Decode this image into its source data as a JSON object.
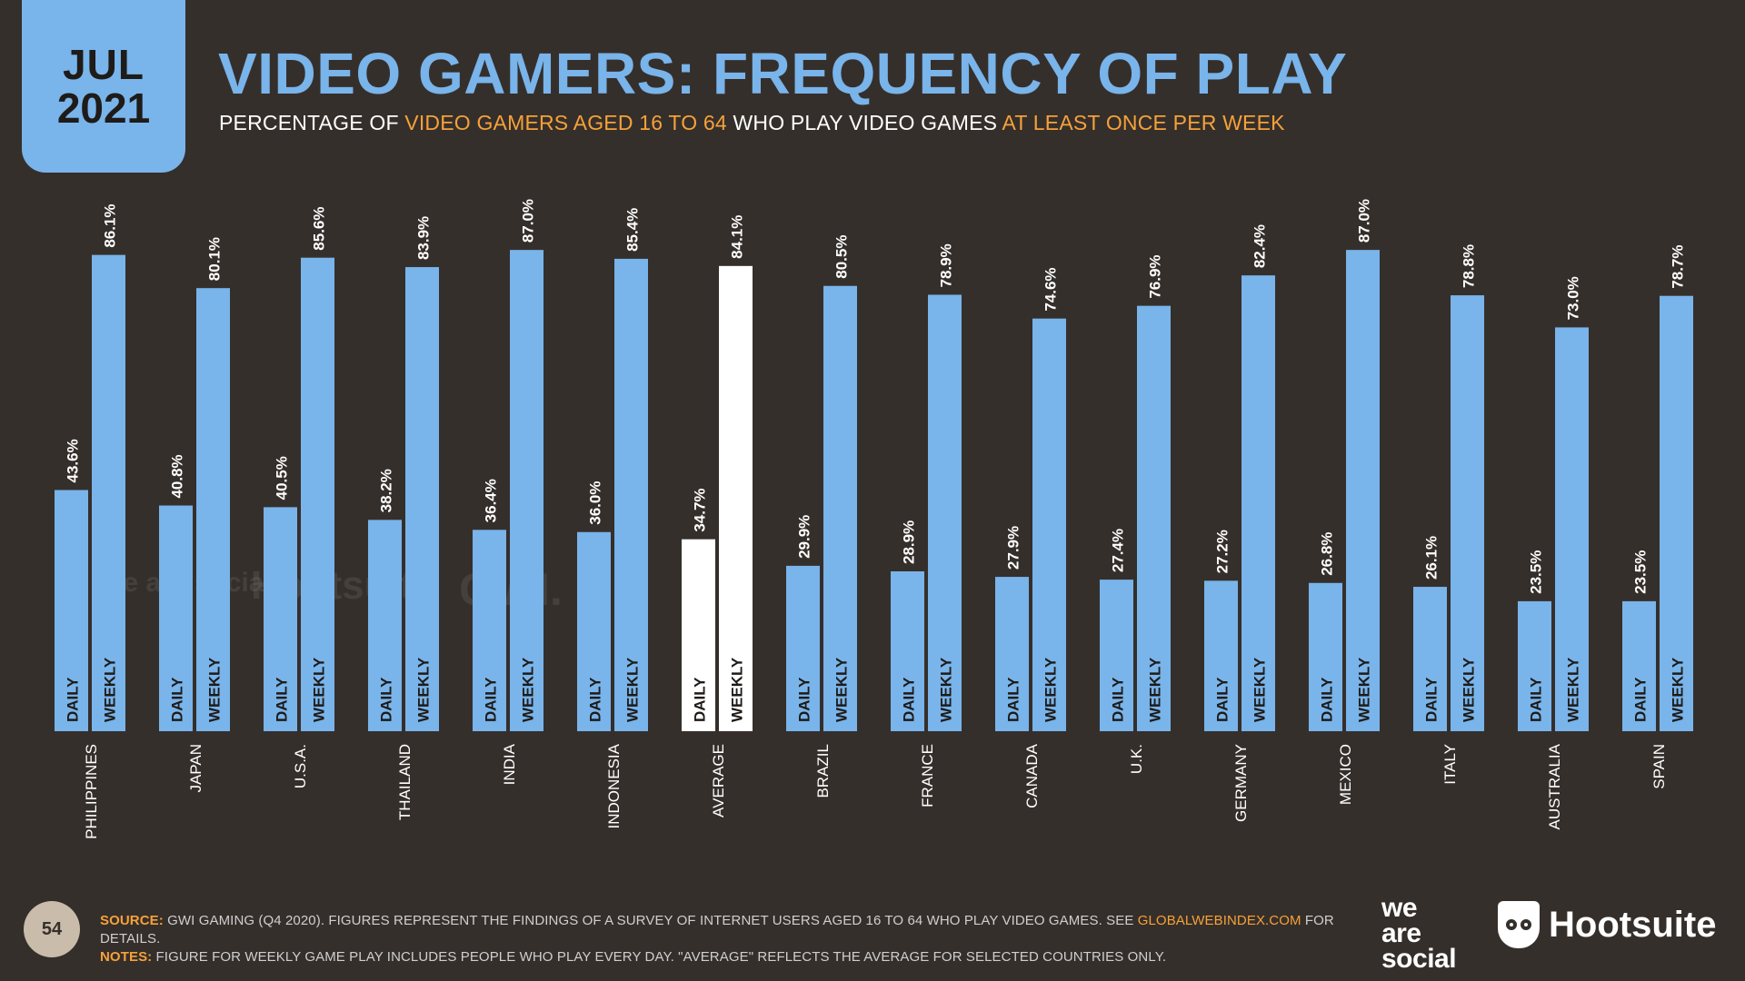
{
  "badge": {
    "month": "JUL",
    "year": "2021"
  },
  "header": {
    "title": "VIDEO GAMERS: FREQUENCY OF PLAY",
    "subtitle_parts": [
      "PERCENTAGE OF ",
      "VIDEO GAMERS AGED 16 TO 64",
      " WHO PLAY VIDEO GAMES ",
      "AT LEAST ONCE PER WEEK"
    ]
  },
  "chart_data": {
    "type": "bar",
    "categories": [
      "PHILIPPINES",
      "JAPAN",
      "U.S.A.",
      "THAILAND",
      "INDIA",
      "INDONESIA",
      "AVERAGE",
      "BRAZIL",
      "FRANCE",
      "CANADA",
      "U.K.",
      "GERMANY",
      "MEXICO",
      "ITALY",
      "AUSTRALIA",
      "SPAIN"
    ],
    "series": [
      {
        "name": "DAILY",
        "values": [
          43.6,
          40.8,
          40.5,
          38.2,
          36.4,
          36.0,
          34.7,
          29.9,
          28.9,
          27.9,
          27.4,
          27.2,
          26.8,
          26.1,
          23.5,
          23.5
        ]
      },
      {
        "name": "WEEKLY",
        "values": [
          86.1,
          80.1,
          85.6,
          83.9,
          87.0,
          85.4,
          84.1,
          80.5,
          78.9,
          74.6,
          76.9,
          82.4,
          87.0,
          78.8,
          73.0,
          78.7
        ]
      }
    ],
    "value_suffix": "%",
    "highlight_category": "AVERAGE",
    "ylim": [
      0,
      100
    ],
    "colors": {
      "bar": "#79b4ea",
      "highlight": "#ffffff",
      "bar_text": "#1e1b19",
      "background": "#352f2b"
    }
  },
  "watermarks": {
    "was": "we are social",
    "hootsuite": "Hootsuite",
    "gwi": "GWI."
  },
  "footer": {
    "source_label": "SOURCE:",
    "source_text": " GWI GAMING (Q4 2020). FIGURES REPRESENT THE FINDINGS OF A SURVEY OF INTERNET USERS AGED 16 TO 64 WHO PLAY VIDEO GAMES. SEE ",
    "source_link": "GLOBALWEBINDEX.COM",
    "source_end": " FOR DETAILS.",
    "notes_label": "NOTES:",
    "notes_text": " FIGURE FOR WEEKLY GAME PLAY INCLUDES PEOPLE WHO PLAY EVERY DAY. \"AVERAGE\" REFLECTS THE AVERAGE FOR SELECTED COUNTRIES ONLY."
  },
  "page_number": "54",
  "logos": {
    "was_lines": [
      "we",
      "are",
      "social"
    ],
    "hootsuite": "Hootsuite"
  }
}
